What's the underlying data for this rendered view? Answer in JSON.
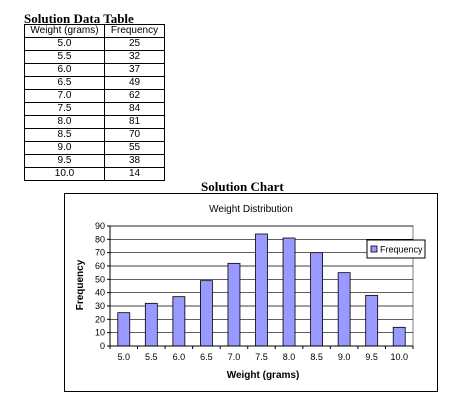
{
  "table_title": "Solution Data Table",
  "table": {
    "headers": [
      "Weight (grams)",
      "Frequency"
    ],
    "rows": [
      [
        "5.0",
        "25"
      ],
      [
        "5.5",
        "32"
      ],
      [
        "6.0",
        "37"
      ],
      [
        "6.5",
        "49"
      ],
      [
        "7.0",
        "62"
      ],
      [
        "7.5",
        "84"
      ],
      [
        "8.0",
        "81"
      ],
      [
        "8.5",
        "70"
      ],
      [
        "9.0",
        "55"
      ],
      [
        "9.5",
        "38"
      ],
      [
        "10.0",
        "14"
      ]
    ]
  },
  "chart_heading": "Solution Chart",
  "chart_data": {
    "type": "bar",
    "title": "Weight Distribution",
    "xlabel": "Weight (grams)",
    "ylabel": "Frequency",
    "categories": [
      "5.0",
      "5.5",
      "6.0",
      "6.5",
      "7.0",
      "7.5",
      "8.0",
      "8.5",
      "9.0",
      "9.5",
      "10.0"
    ],
    "series": [
      {
        "name": "Frequency",
        "values": [
          25,
          32,
          37,
          49,
          62,
          84,
          81,
          70,
          55,
          38,
          14
        ]
      }
    ],
    "ylim": [
      0,
      90
    ],
    "yticks": [
      0,
      10,
      20,
      30,
      40,
      50,
      60,
      70,
      80,
      90
    ],
    "grid": true,
    "legend": "right",
    "colors": {
      "bar_fill": "#9999ff",
      "bar_stroke": "#000000",
      "plot_bg": "#ffffff"
    }
  }
}
